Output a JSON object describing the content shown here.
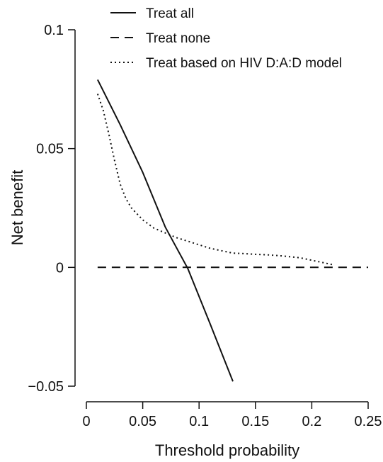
{
  "chart_data": {
    "type": "line",
    "title": "",
    "xlabel": "Threshold probability",
    "ylabel": "Net benefit",
    "xlim": [
      0,
      0.25
    ],
    "ylim": [
      -0.05,
      0.1
    ],
    "xticks": [
      {
        "value": 0,
        "label": "0"
      },
      {
        "value": 0.05,
        "label": "0.05"
      },
      {
        "value": 0.1,
        "label": "0.1"
      },
      {
        "value": 0.15,
        "label": "0.15"
      },
      {
        "value": 0.2,
        "label": "0.2"
      },
      {
        "value": 0.25,
        "label": "0.25"
      }
    ],
    "yticks": [
      {
        "value": -0.05,
        "label": "−0.05"
      },
      {
        "value": 0,
        "label": "0"
      },
      {
        "value": 0.05,
        "label": "0.05"
      },
      {
        "value": 0.1,
        "label": "0.1"
      }
    ],
    "grid": false,
    "legend_position": "top",
    "series": [
      {
        "name": "Treat all",
        "style": "solid",
        "color": "#111111",
        "x": [
          0.01,
          0.03,
          0.05,
          0.07,
          0.09,
          0.11,
          0.13
        ],
        "y": [
          0.079,
          0.06,
          0.04,
          0.017,
          -0.0005,
          -0.024,
          -0.048
        ]
      },
      {
        "name": "Treat none",
        "style": "dashed",
        "color": "#111111",
        "x": [
          0.01,
          0.25
        ],
        "y": [
          0,
          0
        ]
      },
      {
        "name": "Treat based on HIV D:A:D model",
        "style": "dotted",
        "color": "#111111",
        "x": [
          0.01,
          0.015,
          0.02,
          0.025,
          0.03,
          0.035,
          0.04,
          0.05,
          0.06,
          0.07,
          0.08,
          0.09,
          0.1,
          0.11,
          0.12,
          0.13,
          0.14,
          0.15,
          0.16,
          0.17,
          0.18,
          0.19,
          0.2,
          0.21,
          0.22
        ],
        "y": [
          0.073,
          0.066,
          0.056,
          0.045,
          0.035,
          0.029,
          0.025,
          0.02,
          0.0165,
          0.0145,
          0.0125,
          0.011,
          0.0095,
          0.008,
          0.007,
          0.006,
          0.0058,
          0.0055,
          0.0053,
          0.005,
          0.0045,
          0.004,
          0.003,
          0.002,
          0.001
        ]
      }
    ]
  }
}
